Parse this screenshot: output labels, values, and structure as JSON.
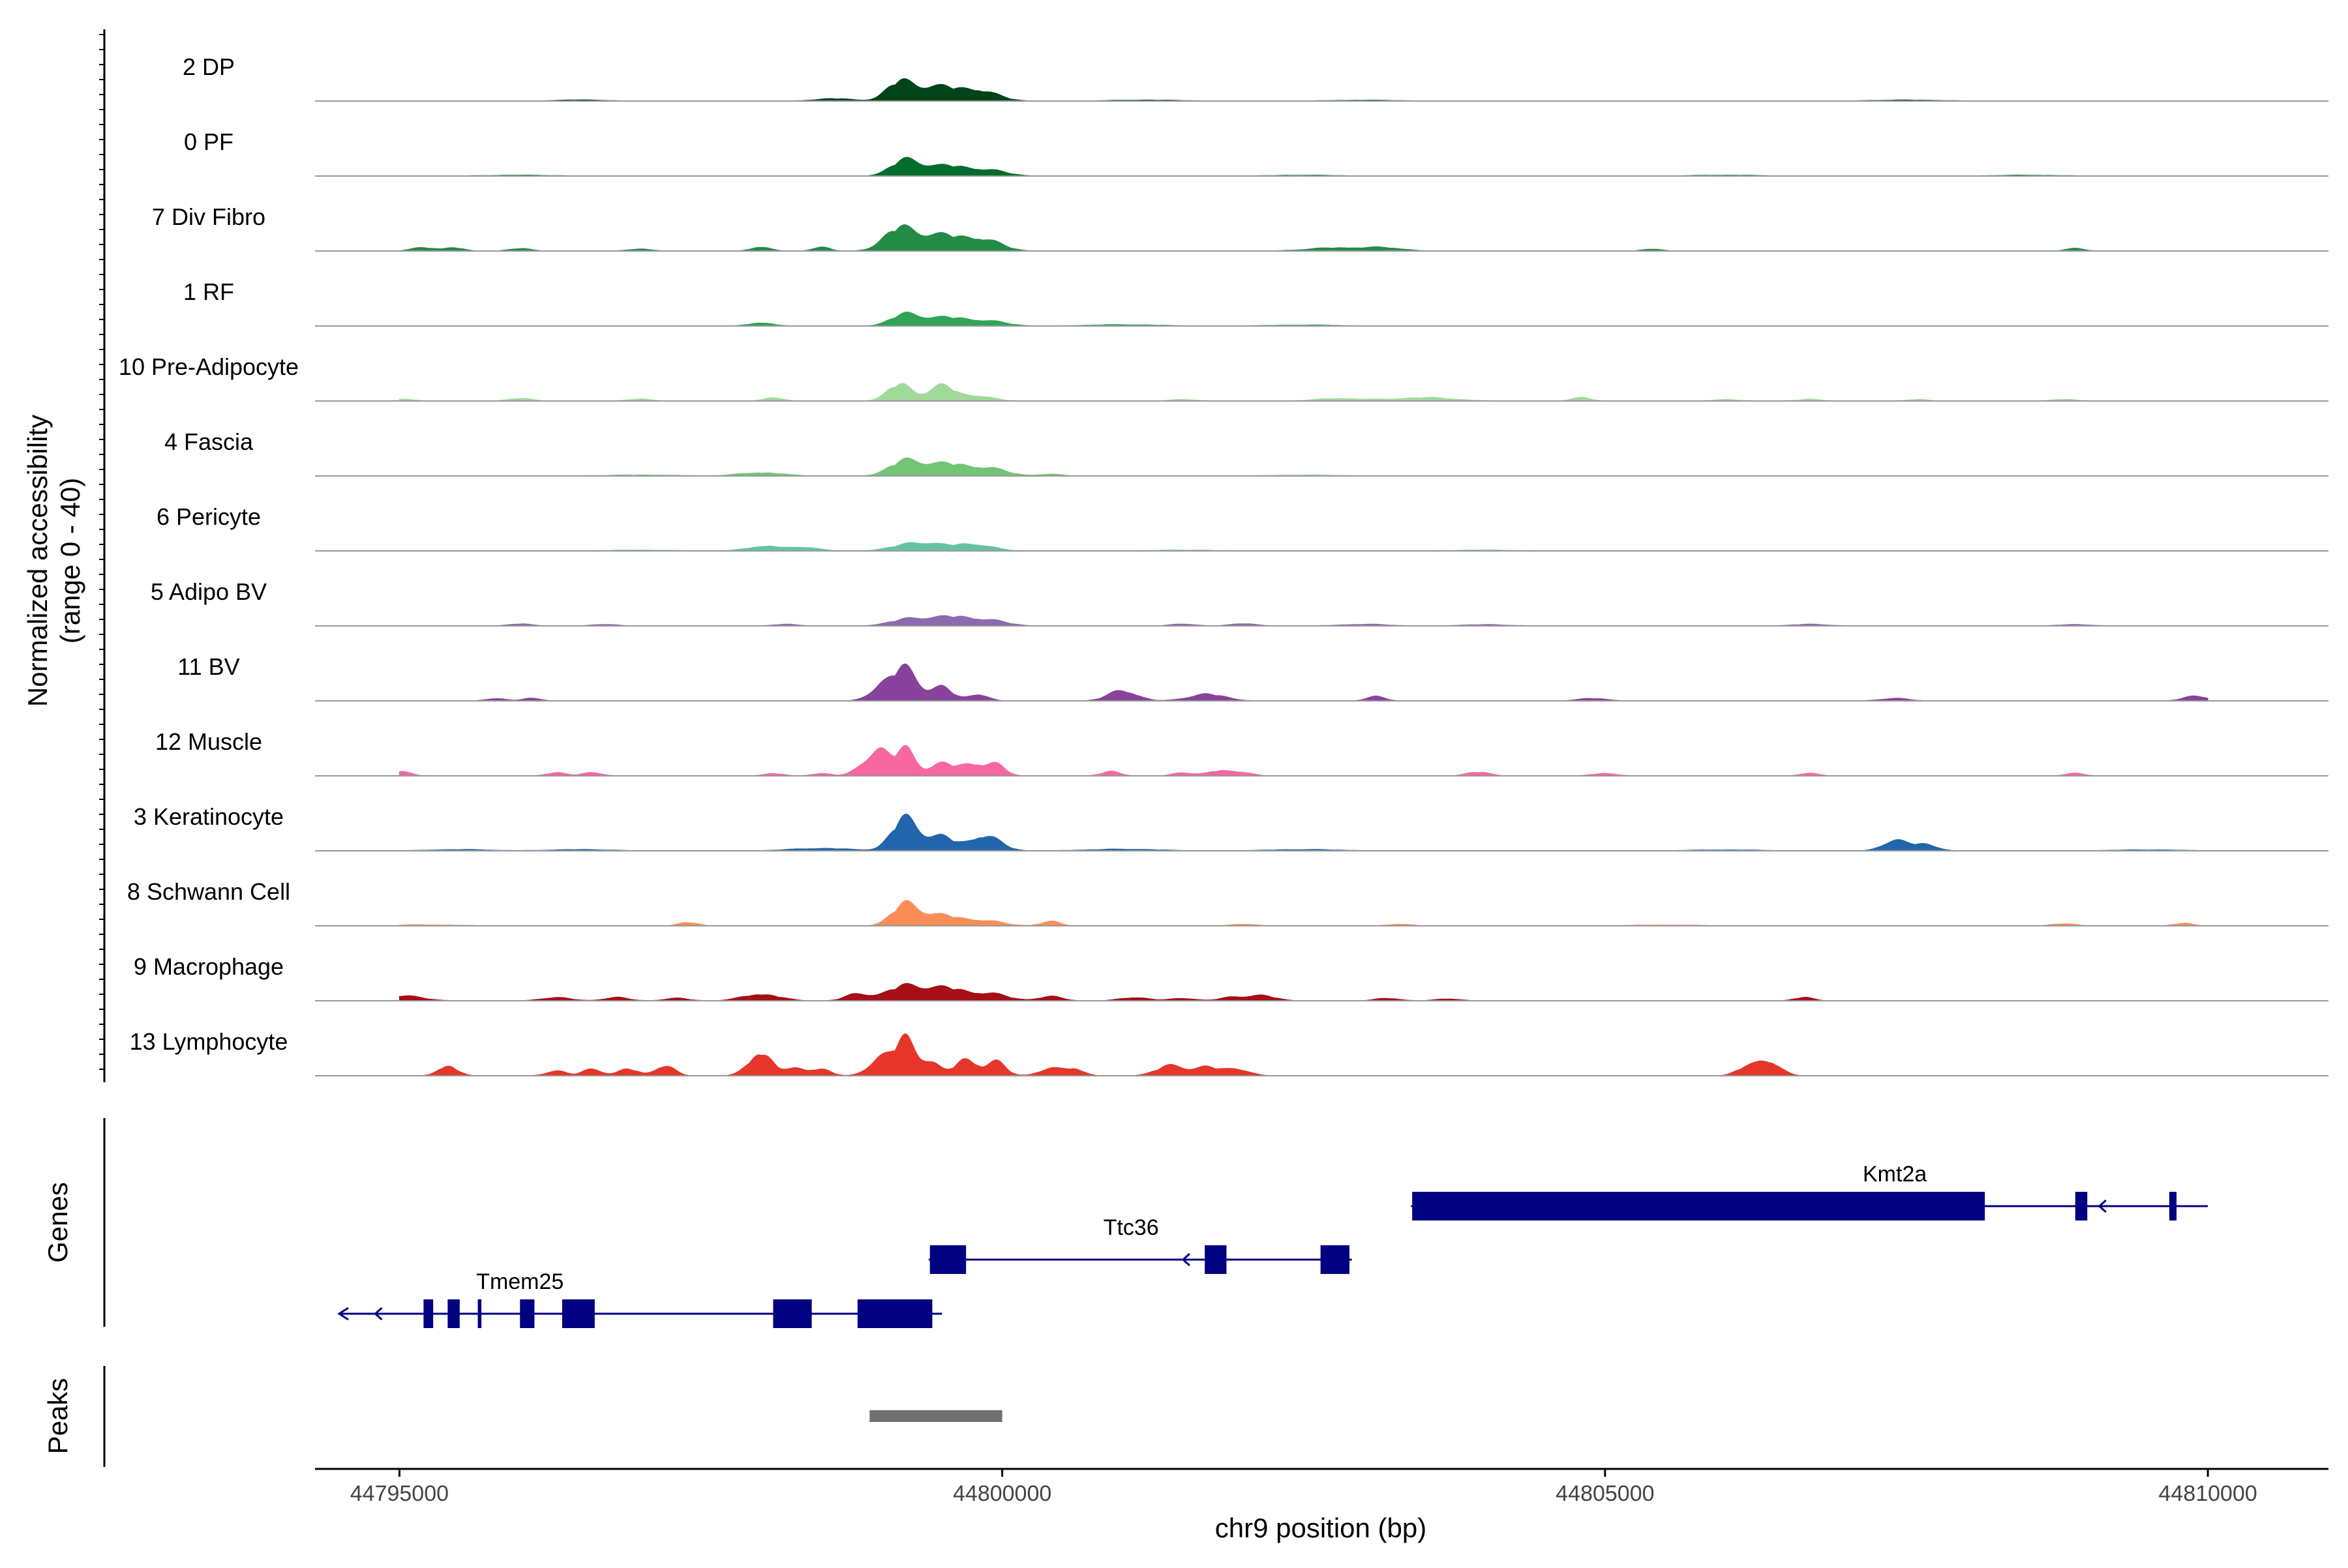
{
  "chart_data": {
    "type": "area",
    "title": "",
    "xlabel": "chr9 position (bp)",
    "ylabel": [
      "Normalized accessibility",
      "(range 0 - 40)"
    ],
    "xlim": [
      44794300,
      44811000
    ],
    "ylim": [
      0,
      40
    ],
    "x_ticks": [
      44795000,
      44800000,
      44805000,
      44810000
    ],
    "x_tick_labels": [
      "44795000",
      "44800000",
      "44805000",
      "44810000"
    ],
    "baseline_color": "#999999",
    "series": [
      {
        "name": "2 DP",
        "color": "#00441b",
        "peaks": [
          [
            44798600,
            1.5,
            150
          ],
          [
            44799150,
            10.5,
            110
          ],
          [
            44799450,
            8,
            170
          ],
          [
            44799800,
            6,
            160
          ],
          [
            44796500,
            0.7,
            200
          ],
          [
            44801200,
            0.6,
            300
          ],
          [
            44803000,
            0.5,
            300
          ],
          [
            44807500,
            0.6,
            300
          ]
        ]
      },
      {
        "name": "0 PF",
        "color": "#006d2c",
        "peaks": [
          [
            44799200,
            9.5,
            120
          ],
          [
            44799550,
            6,
            170
          ],
          [
            44799900,
            3,
            150
          ],
          [
            44796000,
            0.5,
            300
          ],
          [
            44802500,
            0.5,
            300
          ],
          [
            44806000,
            0.5,
            300
          ],
          [
            44808500,
            0.5,
            300
          ]
        ]
      },
      {
        "name": "7 Div Fibro",
        "color": "#238b45",
        "peaks": [
          [
            44799150,
            13,
            130
          ],
          [
            44799500,
            9,
            180
          ],
          [
            44799850,
            6,
            150
          ],
          [
            44798000,
            2.5,
            80
          ],
          [
            44798500,
            2.5,
            70
          ],
          [
            44795200,
            2,
            100
          ],
          [
            44795450,
            2,
            80
          ],
          [
            44796000,
            1.5,
            90
          ],
          [
            44797000,
            1.2,
            100
          ],
          [
            44802800,
            2,
            250
          ],
          [
            44803200,
            1.5,
            150
          ],
          [
            44805400,
            1.2,
            80
          ],
          [
            44808900,
            1.5,
            80
          ]
        ]
      },
      {
        "name": "1 RF",
        "color": "#31a354",
        "peaks": [
          [
            44799200,
            7,
            120
          ],
          [
            44799550,
            5,
            170
          ],
          [
            44799900,
            2.5,
            150
          ],
          [
            44798000,
            2,
            100
          ],
          [
            44801000,
            0.8,
            300
          ],
          [
            44802500,
            0.6,
            300
          ]
        ]
      },
      {
        "name": "10 Pre-Adipocyte",
        "color": "#a1d99b",
        "peaks": [
          [
            44799150,
            10,
            100
          ],
          [
            44799500,
            9,
            110
          ],
          [
            44799800,
            3,
            120
          ],
          [
            44798100,
            2,
            80
          ],
          [
            44796000,
            1.5,
            100
          ],
          [
            44797000,
            1.2,
            100
          ],
          [
            44795000,
            1.2,
            100
          ],
          [
            44801500,
            1,
            100
          ],
          [
            44802800,
            1.5,
            200
          ],
          [
            44803500,
            2,
            250
          ],
          [
            44804800,
            2,
            80
          ],
          [
            44806000,
            1,
            100
          ],
          [
            44806700,
            1,
            100
          ],
          [
            44807600,
            1,
            80
          ],
          [
            44808800,
            1,
            100
          ]
        ]
      },
      {
        "name": "4 Fascia",
        "color": "#74c476",
        "peaks": [
          [
            44799200,
            9,
            130
          ],
          [
            44799550,
            7,
            170
          ],
          [
            44799900,
            4,
            150
          ],
          [
            44798000,
            2,
            180
          ],
          [
            44800400,
            1,
            100
          ],
          [
            44797000,
            0.6,
            300
          ],
          [
            44802500,
            0.5,
            300
          ]
        ]
      },
      {
        "name": "6 Pericyte",
        "color": "#66c2a4",
        "peaks": [
          [
            44799300,
            5,
            180
          ],
          [
            44799750,
            4,
            160
          ],
          [
            44798050,
            3,
            150
          ],
          [
            44798400,
            2,
            100
          ],
          [
            44797000,
            0.5,
            300
          ],
          [
            44801500,
            0.5,
            300
          ],
          [
            44804000,
            0.5,
            300
          ]
        ]
      },
      {
        "name": "5 Adipo BV",
        "color": "#8c6bb1",
        "peaks": [
          [
            44799250,
            4.5,
            160
          ],
          [
            44799600,
            5,
            150
          ],
          [
            44799900,
            3,
            150
          ],
          [
            44796000,
            1.2,
            100
          ],
          [
            44796700,
            1,
            100
          ],
          [
            44798200,
            1,
            100
          ],
          [
            44801500,
            1.2,
            100
          ],
          [
            44802000,
            1.5,
            100
          ],
          [
            44803000,
            1,
            200
          ],
          [
            44804000,
            0.8,
            200
          ],
          [
            44806700,
            1,
            150
          ],
          [
            44808900,
            0.8,
            150
          ]
        ]
      },
      {
        "name": "11 BV",
        "color": "#88419d",
        "peaks": [
          [
            44799200,
            19,
            100
          ],
          [
            44799000,
            8,
            100
          ],
          [
            44799500,
            8,
            90
          ],
          [
            44799800,
            4,
            80
          ],
          [
            44801000,
            6,
            120
          ],
          [
            44801700,
            4,
            150
          ],
          [
            44803100,
            2.5,
            80
          ],
          [
            44804900,
            1.5,
            120
          ],
          [
            44807400,
            1.5,
            120
          ],
          [
            44809900,
            3,
            100
          ],
          [
            44795800,
            1.5,
            80
          ],
          [
            44796100,
            1.5,
            80
          ]
        ]
      },
      {
        "name": "12 Muscle",
        "color": "#f768a1",
        "peaks": [
          [
            44799200,
            16,
            80
          ],
          [
            44798900,
            8,
            100
          ],
          [
            44799000,
            10,
            80
          ],
          [
            44799500,
            7,
            100
          ],
          [
            44799750,
            7,
            100
          ],
          [
            44799950,
            6,
            80
          ],
          [
            44795000,
            3,
            80
          ],
          [
            44796300,
            2,
            80
          ],
          [
            44796600,
            2,
            80
          ],
          [
            44798100,
            1.5,
            80
          ],
          [
            44798500,
            1.5,
            80
          ],
          [
            44800900,
            2.5,
            80
          ],
          [
            44801500,
            2,
            80
          ],
          [
            44801800,
            3,
            100
          ],
          [
            44802000,
            2,
            80
          ],
          [
            44803900,
            1.5,
            80
          ],
          [
            44804000,
            1.2,
            80
          ],
          [
            44805000,
            1.5,
            100
          ],
          [
            44806700,
            1.5,
            80
          ],
          [
            44808900,
            1.5,
            80
          ]
        ]
      },
      {
        "name": "3 Keratinocyte",
        "color": "#2166ac",
        "peaks": [
          [
            44799200,
            20,
            110
          ],
          [
            44799500,
            8,
            100
          ],
          [
            44799850,
            9,
            130
          ],
          [
            44798500,
            1.5,
            250
          ],
          [
            44795500,
            0.8,
            250
          ],
          [
            44796500,
            0.8,
            250
          ],
          [
            44807400,
            6,
            100
          ],
          [
            44807650,
            4,
            100
          ],
          [
            44801000,
            1,
            300
          ],
          [
            44802500,
            0.8,
            300
          ],
          [
            44806000,
            0.6,
            300
          ],
          [
            44809500,
            0.6,
            300
          ]
        ]
      },
      {
        "name": "8 Schwann Cell",
        "color": "#fc8d59",
        "peaks": [
          [
            44799200,
            13,
            110
          ],
          [
            44799500,
            6,
            150
          ],
          [
            44799850,
            3,
            150
          ],
          [
            44797400,
            2,
            80
          ],
          [
            44800400,
            2.5,
            80
          ],
          [
            44802000,
            1,
            100
          ],
          [
            44803300,
            1,
            100
          ],
          [
            44808800,
            1.2,
            100
          ],
          [
            44809800,
            1.5,
            80
          ],
          [
            44795200,
            0.6,
            300
          ],
          [
            44805500,
            0.5,
            300
          ]
        ]
      },
      {
        "name": "9 Macrophage",
        "color": "#a50f15",
        "peaks": [
          [
            44799200,
            9,
            150
          ],
          [
            44799550,
            7,
            150
          ],
          [
            44798800,
            4,
            100
          ],
          [
            44799900,
            4,
            150
          ],
          [
            44800400,
            2.5,
            100
          ],
          [
            44795000,
            3,
            180
          ],
          [
            44798000,
            4,
            150
          ],
          [
            44796300,
            2,
            120
          ],
          [
            44796800,
            2,
            100
          ],
          [
            44797300,
            1.5,
            100
          ],
          [
            44801100,
            2,
            120
          ],
          [
            44801500,
            1.5,
            100
          ],
          [
            44801900,
            2,
            100
          ],
          [
            44802150,
            3,
            120
          ],
          [
            44803200,
            1.5,
            100
          ],
          [
            44803700,
            1.2,
            100
          ],
          [
            44806650,
            2,
            80
          ]
        ]
      },
      {
        "name": "13 Lymphocyte",
        "color": "#e6362a",
        "peaks": [
          [
            44799200,
            21,
            80
          ],
          [
            44799000,
            11,
            100
          ],
          [
            44799400,
            8,
            80
          ],
          [
            44799700,
            10,
            90
          ],
          [
            44799950,
            8,
            80
          ],
          [
            44798000,
            14,
            100
          ],
          [
            44795400,
            6,
            80
          ],
          [
            44796300,
            3,
            80
          ],
          [
            44796600,
            4,
            80
          ],
          [
            44796900,
            4,
            80
          ],
          [
            44797200,
            6,
            80
          ],
          [
            44798300,
            4,
            80
          ],
          [
            44798500,
            4,
            80
          ],
          [
            44800400,
            4,
            100
          ],
          [
            44800600,
            4,
            80
          ],
          [
            44801400,
            6,
            120
          ],
          [
            44801700,
            5,
            100
          ],
          [
            44801950,
            4,
            100
          ],
          [
            44806150,
            4,
            80
          ],
          [
            44806350,
            9,
            100
          ]
        ]
      }
    ],
    "genes_track": {
      "label": "Genes",
      "color": "#000080",
      "genes": [
        {
          "name": "Kmt2a",
          "start": 44803400,
          "end": 44810000,
          "strand": "-",
          "exons": [
            [
              44803400,
              44808150
            ],
            [
              44808900,
              44809000
            ],
            [
              44809680,
              44809740
            ]
          ]
        },
        {
          "name": "Ttc36",
          "start": 44799400,
          "end": 44802900,
          "strand": "-",
          "exons": [
            [
              44799400,
              44799700
            ],
            [
              44801680,
              44801860
            ],
            [
              44802640,
              44802880
            ]
          ]
        },
        {
          "name": "Tmem25",
          "start": 44794500,
          "end": 44799500,
          "strand": "-",
          "exons": [
            [
              44795200,
              44795280
            ],
            [
              44795400,
              44795500
            ],
            [
              44795650,
              44795680
            ],
            [
              44796000,
              44796120
            ],
            [
              44796350,
              44796620
            ],
            [
              44798100,
              44798420
            ],
            [
              44798800,
              44799420
            ]
          ]
        }
      ]
    },
    "peaks_track": {
      "label": "Peaks",
      "color": "#707070",
      "regions": [
        [
          44798900,
          44800000
        ]
      ]
    }
  }
}
